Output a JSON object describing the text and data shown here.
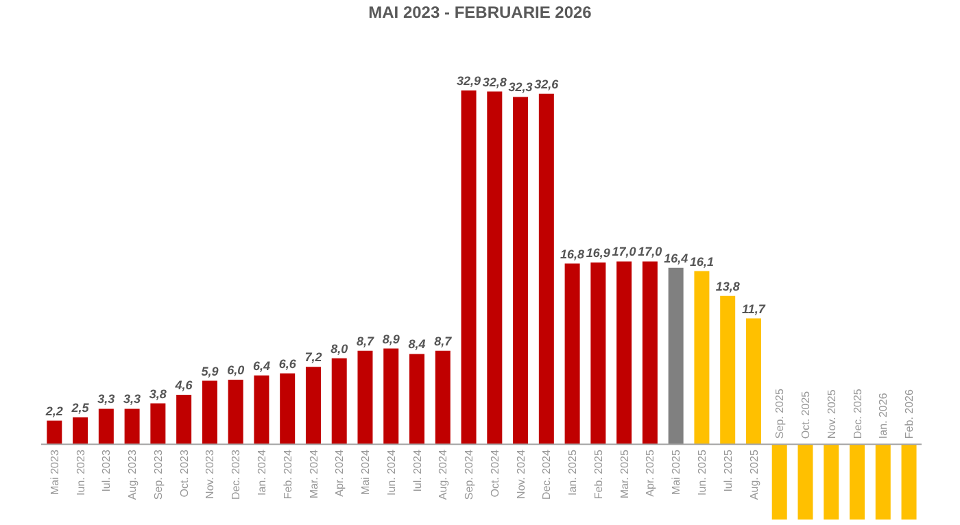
{
  "chart_data": {
    "type": "bar",
    "title": "MAI 2023 - FEBRUARIE 2026",
    "categories": [
      "Mai 2023",
      "Iun. 2023",
      "Iul. 2023",
      "Aug. 2023",
      "Sep. 2023",
      "Oct. 2023",
      "Nov. 2023",
      "Dec. 2023",
      "Ian. 2024",
      "Feb. 2024",
      "Mar. 2024",
      "Apr. 2024",
      "Mai 2024",
      "Iun. 2024",
      "Iul. 2024",
      "Aug. 2024",
      "Sep. 2024",
      "Oct. 2024",
      "Nov. 2024",
      "Dec. 2024",
      "Ian. 2025",
      "Feb. 2025",
      "Mar. 2025",
      "Apr. 2025",
      "Mai 2025",
      "Iun. 2025",
      "Iul. 2025",
      "Aug. 2025",
      "Sep. 2025",
      "Oct. 2025",
      "Nov. 2025",
      "Dec. 2025",
      "Ian. 2026",
      "Feb. 2026"
    ],
    "values": [
      2.2,
      2.5,
      3.3,
      3.3,
      3.8,
      4.6,
      5.9,
      6.0,
      6.4,
      6.6,
      7.2,
      8.0,
      8.7,
      8.9,
      8.4,
      8.7,
      32.9,
      32.8,
      32.3,
      32.6,
      16.8,
      16.9,
      17.0,
      17.0,
      16.4,
      16.1,
      13.8,
      11.7,
      -7,
      -7,
      -7,
      -7,
      -7,
      -7
    ],
    "value_labels": [
      "2,2",
      "2,5",
      "3,3",
      "3,3",
      "3,8",
      "4,6",
      "5,9",
      "6,0",
      "6,4",
      "6,6",
      "7,2",
      "8,0",
      "8,7",
      "8,9",
      "8,4",
      "8,7",
      "32,9",
      "32,8",
      "32,3",
      "32,6",
      "16,8",
      "16,9",
      "17,0",
      "17,0",
      "16,4",
      "16,1",
      "13,8",
      "11,7",
      null,
      null,
      null,
      null,
      null,
      null
    ],
    "colors": [
      "#c00000",
      "#c00000",
      "#c00000",
      "#c00000",
      "#c00000",
      "#c00000",
      "#c00000",
      "#c00000",
      "#c00000",
      "#c00000",
      "#c00000",
      "#c00000",
      "#c00000",
      "#c00000",
      "#c00000",
      "#c00000",
      "#c00000",
      "#c00000",
      "#c00000",
      "#c00000",
      "#c00000",
      "#c00000",
      "#c00000",
      "#c00000",
      "#808080",
      "#ffc000",
      "#ffc000",
      "#ffc000",
      "#ffc000",
      "#ffc000",
      "#ffc000",
      "#ffc000",
      "#ffc000",
      "#ffc000"
    ],
    "tick_labels": "x"
  }
}
